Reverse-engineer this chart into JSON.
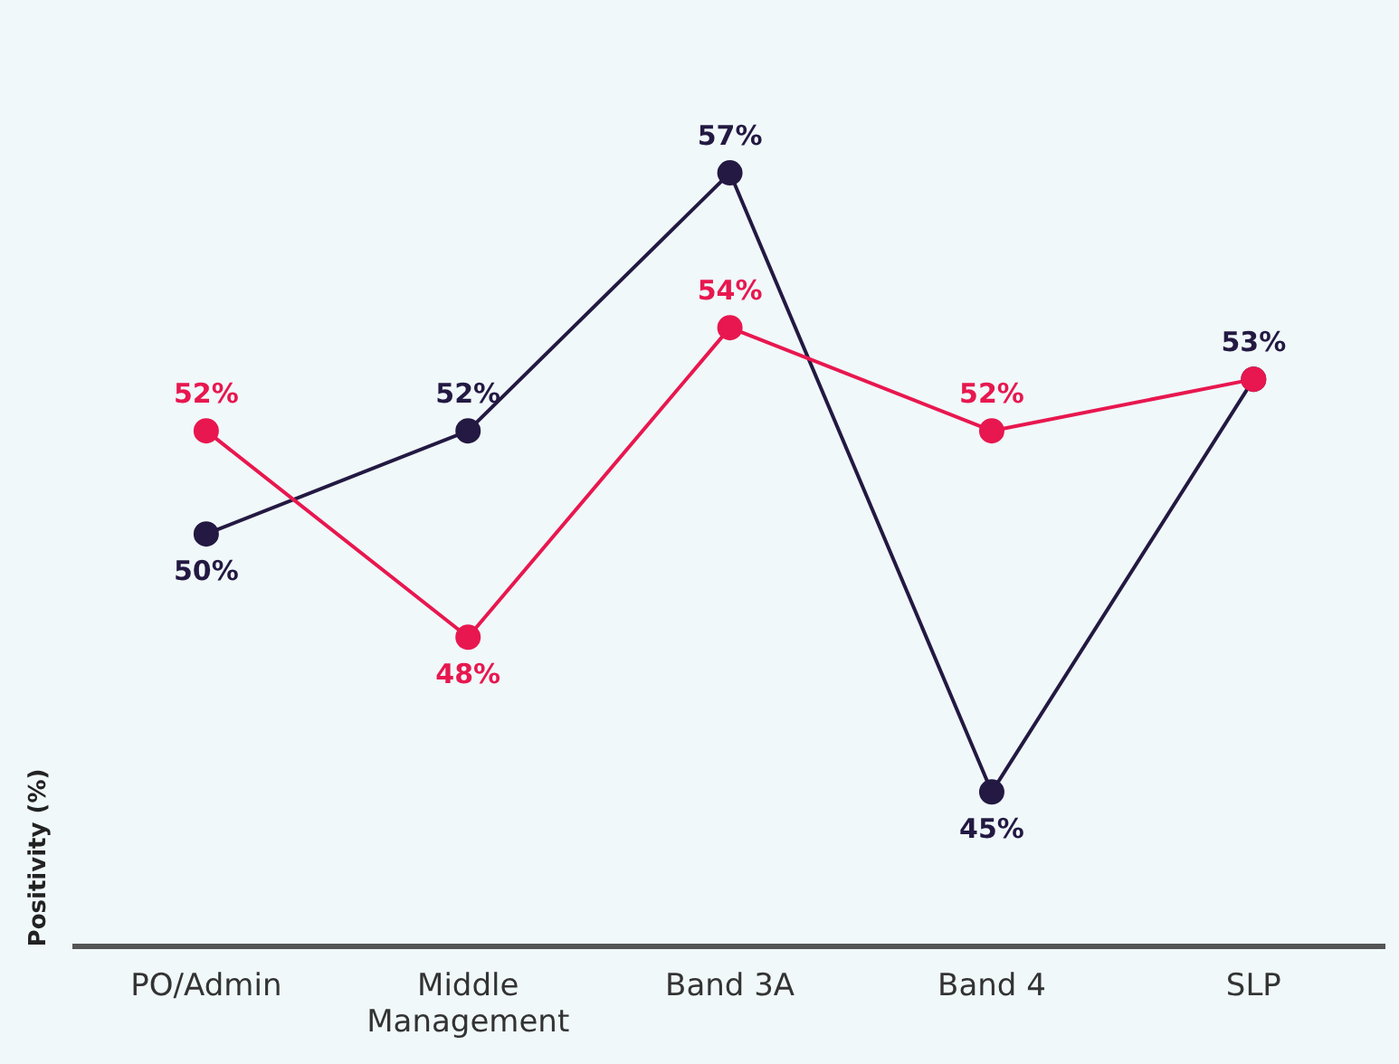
{
  "chart_data": {
    "type": "line",
    "ylabel": "Positivity (%)",
    "categories": [
      "PO/Admin",
      "Middle Management",
      "Band 3A",
      "Band 4",
      "SLP"
    ],
    "series": [
      {
        "color": "#e8174f",
        "values": [
          52,
          48,
          54,
          52,
          53
        ],
        "value_labels": [
          "52%",
          "48%",
          "54%",
          "52%",
          null
        ]
      },
      {
        "color": "#231942",
        "values": [
          50,
          52,
          57,
          45,
          53
        ],
        "value_labels": [
          "50%",
          "52%",
          "57%",
          "45%",
          "53%"
        ]
      }
    ],
    "tick_labels": "x",
    "grid": false,
    "legend": false,
    "marker": "circle",
    "line_style": "solid"
  }
}
